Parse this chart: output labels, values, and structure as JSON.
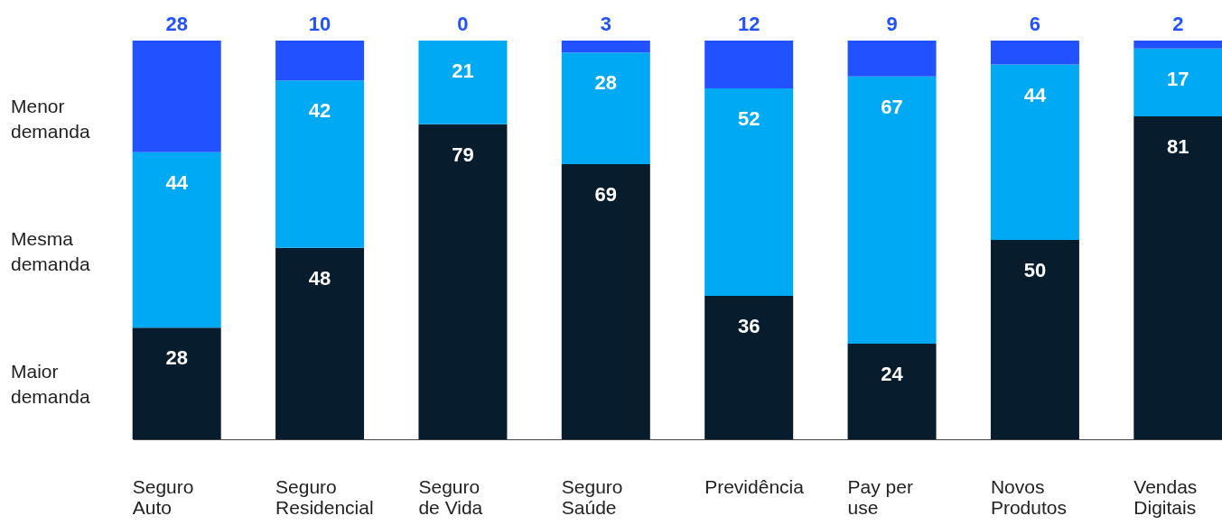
{
  "chart_data": {
    "type": "bar",
    "stacked": true,
    "data_labels": true,
    "legend": "left",
    "grid": false,
    "tick_labels": "x",
    "ylim": [
      0,
      100
    ],
    "categories": [
      "Seguro Auto",
      "Seguro Residencial",
      "Seguro de Vida",
      "Seguro Saúde",
      "Previdência",
      "Pay per use",
      "Novos Produtos",
      "Vendas Digitais"
    ],
    "series": [
      {
        "name": "Maior demanda",
        "color": "#071d2e",
        "values": [
          28,
          48,
          79,
          69,
          36,
          24,
          50,
          81
        ]
      },
      {
        "name": "Mesma demanda",
        "color": "#00a9f4",
        "values": [
          44,
          42,
          21,
          28,
          52,
          67,
          44,
          17
        ]
      },
      {
        "name": "Menor demanda",
        "color": "#2251ff",
        "values": [
          28,
          10,
          0,
          3,
          12,
          9,
          6,
          2
        ]
      }
    ]
  }
}
